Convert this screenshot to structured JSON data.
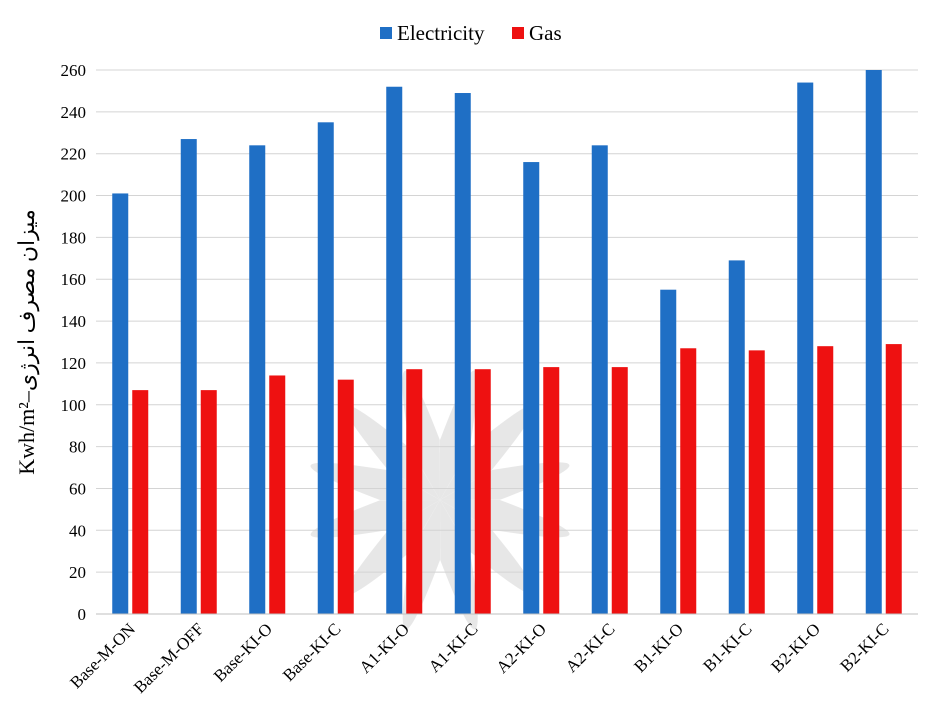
{
  "chart_data": {
    "type": "bar",
    "categories": [
      "Base-M-ON",
      "Base-M-OFF",
      "Base-KI-O",
      "Base-KI-C",
      "A1-KI-O",
      "A1-KI-C",
      "A2-KI-O",
      "A2-KI-C",
      "B1-KI-O",
      "B1-KI-C",
      "B2-KI-O",
      "B2-KI-C"
    ],
    "series": [
      {
        "name": "Electricity",
        "color": "#1f6fc5",
        "values": [
          201,
          227,
          224,
          235,
          252,
          249,
          216,
          224,
          155,
          169,
          254,
          260
        ]
      },
      {
        "name": "Gas",
        "color": "#ee1111",
        "values": [
          107,
          107,
          114,
          112,
          117,
          117,
          118,
          118,
          127,
          126,
          128,
          129
        ]
      }
    ],
    "ylabel": "Kwh/m²–میزان مصرف انرژی",
    "ylim": [
      0,
      260
    ],
    "yticks": [
      0,
      20,
      40,
      60,
      80,
      100,
      120,
      140,
      160,
      180,
      200,
      220,
      240,
      260
    ],
    "grid": true,
    "legend_position": "top-center"
  }
}
